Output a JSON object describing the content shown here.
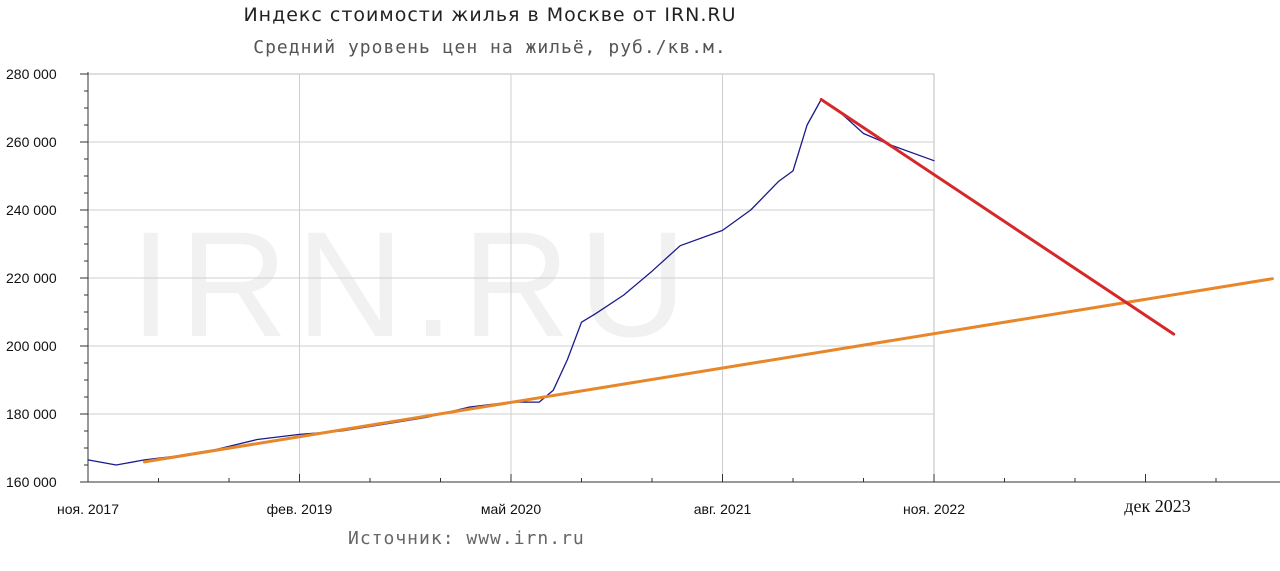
{
  "chart_data": {
    "type": "line",
    "title": "Индекс стоимости жилья в Москве от IRN.RU",
    "subtitle": "Средний уровень цен на жильё, руб./кв.м.",
    "source": "Источник: www.irn.ru",
    "watermark": "IRN.RU",
    "ylim": [
      160000,
      280000
    ],
    "y_ticks": [
      "280 000",
      "260 000",
      "240 000",
      "220 000",
      "200 000",
      "180 000",
      "160 000"
    ],
    "x_ticks": [
      "ноя. 2017",
      "фев. 2019",
      "май 2020",
      "авг. 2021",
      "ноя. 2022"
    ],
    "x_extra_label": "дек 2023",
    "grid": true,
    "series": [
      {
        "color": "#1a1a8c",
        "x": [
          "2017-11",
          "2018-01",
          "2018-03",
          "2018-05",
          "2018-08",
          "2018-11",
          "2019-02",
          "2019-05",
          "2019-08",
          "2019-11",
          "2020-02",
          "2020-05",
          "2020-07",
          "2020-08",
          "2020-09",
          "2020-10",
          "2020-11",
          "2021-01",
          "2021-03",
          "2021-05",
          "2021-08",
          "2021-10",
          "2021-12",
          "2022-01",
          "2022-02",
          "2022-03",
          "2022-04",
          "2022-06",
          "2022-08",
          "2022-11"
        ],
        "values": [
          166500,
          165000,
          166500,
          167500,
          169500,
          172500,
          174000,
          175000,
          177000,
          179000,
          182000,
          183500,
          183500,
          187000,
          196000,
          207000,
          209500,
          215000,
          222000,
          229500,
          234000,
          240000,
          248500,
          251500,
          265000,
          272500,
          270000,
          262500,
          259000,
          254500
        ]
      },
      {
        "color": "#e8872a",
        "x": [
          "2018-03",
          "2024-11"
        ],
        "values": [
          165900,
          219800
        ]
      },
      {
        "color": "#d62828",
        "x": [
          "2022-03",
          "2024-04"
        ],
        "values": [
          272500,
          203500
        ]
      }
    ]
  }
}
